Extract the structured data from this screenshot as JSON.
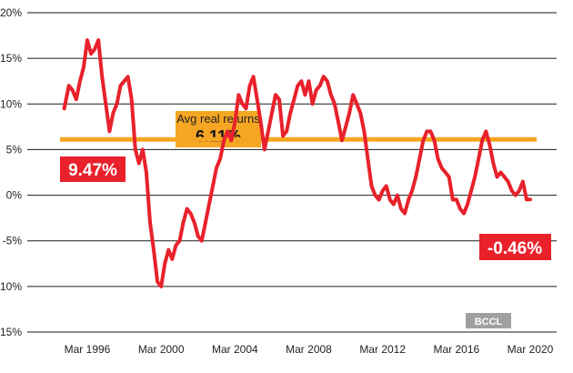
{
  "chart_data": {
    "type": "line",
    "title": "",
    "xlabel": "",
    "ylabel": "",
    "ylim": [
      -15,
      20
    ],
    "y_ticks": [
      20,
      15,
      10,
      5,
      0,
      -5,
      -10,
      -15
    ],
    "y_tick_labels": [
      "20%",
      "15%",
      "10%",
      "5%",
      "0%",
      "-5%",
      "-10%",
      "-15%"
    ],
    "x_range": [
      1994,
      2020
    ],
    "x_ticks": [
      1996,
      2000,
      2004,
      2008,
      2012,
      2016,
      2020
    ],
    "x_tick_labels": [
      "Mar 1996",
      "Mar 2000",
      "Mar 2004",
      "Mar 2008",
      "Mar 2012",
      "Mar 2016",
      "Mar 2020"
    ],
    "grid": "horizontal",
    "series": [
      {
        "color": "#e8212b",
        "x": [
          1994.75,
          1995.0,
          1995.2,
          1995.4,
          1995.6,
          1995.8,
          1996.0,
          1996.2,
          1996.4,
          1996.6,
          1996.8,
          1997.0,
          1997.2,
          1997.4,
          1997.6,
          1997.8,
          1998.0,
          1998.2,
          1998.4,
          1998.6,
          1998.8,
          1999.0,
          1999.2,
          1999.4,
          1999.6,
          1999.8,
          2000.0,
          2000.2,
          2000.4,
          2000.6,
          2000.8,
          2001.0,
          2001.2,
          2001.4,
          2001.6,
          2001.8,
          2002.0,
          2002.2,
          2002.4,
          2002.6,
          2002.8,
          2003.0,
          2003.2,
          2003.4,
          2003.6,
          2003.8,
          2004.0,
          2004.2,
          2004.4,
          2004.6,
          2004.8,
          2005.0,
          2005.2,
          2005.4,
          2005.6,
          2005.8,
          2006.0,
          2006.2,
          2006.4,
          2006.6,
          2006.8,
          2007.0,
          2007.2,
          2007.4,
          2007.6,
          2007.8,
          2008.0,
          2008.2,
          2008.4,
          2008.6,
          2008.8,
          2009.0,
          2009.2,
          2009.4,
          2009.6,
          2009.8,
          2010.0,
          2010.2,
          2010.4,
          2010.6,
          2010.8,
          2011.0,
          2011.2,
          2011.4,
          2011.6,
          2011.8,
          2012.0,
          2012.2,
          2012.4,
          2012.6,
          2012.8,
          2013.0,
          2013.2,
          2013.4,
          2013.6,
          2013.8,
          2014.0,
          2014.2,
          2014.4,
          2014.6,
          2014.8,
          2015.0,
          2015.2,
          2015.4,
          2015.6,
          2015.8,
          2016.0,
          2016.2,
          2016.4,
          2016.6,
          2016.8,
          2017.0,
          2017.2,
          2017.4,
          2017.6,
          2017.8,
          2018.0,
          2018.2,
          2018.4,
          2018.6,
          2018.8,
          2019.0,
          2019.2,
          2019.4,
          2019.6,
          2019.8,
          2020.0
        ],
        "values": [
          9.5,
          12.0,
          11.5,
          10.5,
          12.5,
          14.0,
          17.0,
          15.5,
          16.0,
          17.0,
          13.0,
          10.0,
          7.0,
          9.0,
          10.0,
          12.0,
          12.5,
          13.0,
          10.5,
          5.0,
          3.5,
          5.0,
          2.5,
          -3.0,
          -6.0,
          -9.5,
          -10.0,
          -7.5,
          -6.0,
          -7.0,
          -5.5,
          -5.0,
          -3.0,
          -1.5,
          -2.0,
          -3.0,
          -4.5,
          -5.0,
          -3.0,
          -1.0,
          1.0,
          3.0,
          4.0,
          6.0,
          7.0,
          6.0,
          8.0,
          11.0,
          10.0,
          9.5,
          12.0,
          13.0,
          10.5,
          8.0,
          5.0,
          7.0,
          9.0,
          11.0,
          10.5,
          6.5,
          7.0,
          9.0,
          10.5,
          12.0,
          12.5,
          11.0,
          12.5,
          10.0,
          11.5,
          12.0,
          13.0,
          12.5,
          11.0,
          10.0,
          8.0,
          6.0,
          7.5,
          9.0,
          11.0,
          10.0,
          9.0,
          7.0,
          4.0,
          1.0,
          0.0,
          -0.5,
          0.5,
          1.0,
          -0.5,
          -1.0,
          0.0,
          -1.5,
          -2.0,
          -0.5,
          0.5,
          2.0,
          4.0,
          6.0,
          7.0,
          7.0,
          6.0,
          4.0,
          3.0,
          2.5,
          2.0,
          -0.5,
          -0.46,
          -1.5,
          -2.0,
          -1.0,
          0.5,
          2.0,
          4.0,
          6.0,
          7.0,
          5.5,
          3.5,
          2.0,
          2.5,
          2.0,
          1.5,
          0.5,
          0.0,
          0.5,
          1.5,
          -0.46,
          -0.46
        ]
      }
    ],
    "reference_line": {
      "value": 6.11,
      "color": "#f5a623"
    },
    "annotations": [
      {
        "text": "Avg real returns",
        "value": "6.11%",
        "anchor": "avg-line",
        "color": "#f5a623"
      },
      {
        "text": "9.47%",
        "anchor": "series-start",
        "color": "#e8212b"
      },
      {
        "text": "-0.46%",
        "anchor": "series-end",
        "color": "#e8212b"
      }
    ]
  },
  "credit": {
    "text": "BCCL",
    "color": "#a0a0a0"
  }
}
